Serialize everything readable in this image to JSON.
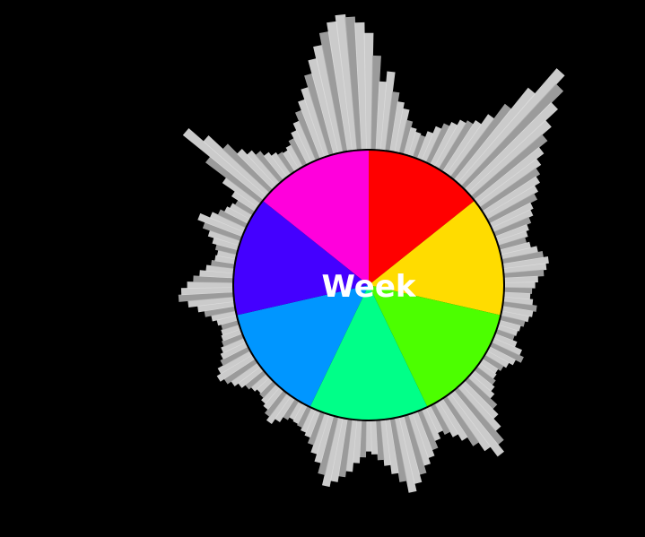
{
  "chart_data": {
    "type": "pie",
    "center_label": "Week",
    "title": "",
    "slices": [
      {
        "value": 1,
        "color": "#ff0000"
      },
      {
        "value": 1,
        "color": "#ffdc00"
      },
      {
        "value": 1,
        "color": "#4cff00"
      },
      {
        "value": 1,
        "color": "#00ff88"
      },
      {
        "value": 1,
        "color": "#0096ff"
      },
      {
        "value": 1,
        "color": "#4400ff"
      },
      {
        "value": 1,
        "color": "#ff00dc"
      }
    ],
    "radial_bars": {
      "color": "#dcdcdc",
      "shade_color": "#a8a8a8",
      "count": 180,
      "values": [
        0.77,
        0.62,
        0.45,
        0.52,
        0.39,
        0.33,
        0.29,
        0.22,
        0.18,
        0.16,
        0.15,
        0.19,
        0.24,
        0.28,
        0.31,
        0.35,
        0.37,
        0.4,
        0.48,
        0.6,
        0.78,
        1.0,
        0.92,
        0.81,
        0.7,
        0.62,
        0.55,
        0.49,
        0.45,
        0.42,
        0.38,
        0.35,
        0.3,
        0.28,
        0.25,
        0.22,
        0.2,
        0.18,
        0.2,
        0.24,
        0.27,
        0.3,
        0.28,
        0.26,
        0.22,
        0.2,
        0.18,
        0.17,
        0.19,
        0.22,
        0.2,
        0.18,
        0.16,
        0.14,
        0.13,
        0.12,
        0.15,
        0.2,
        0.23,
        0.19,
        0.16,
        0.14,
        0.12,
        0.13,
        0.15,
        0.17,
        0.2,
        0.26,
        0.31,
        0.38,
        0.46,
        0.52,
        0.44,
        0.37,
        0.3,
        0.25,
        0.21,
        0.18,
        0.22,
        0.27,
        0.31,
        0.35,
        0.4,
        0.45,
        0.5,
        0.42,
        0.36,
        0.3,
        0.26,
        0.22,
        0.2,
        0.24,
        0.28,
        0.34,
        0.38,
        0.42,
        0.46,
        0.39,
        0.32,
        0.27,
        0.22,
        0.18,
        0.16,
        0.14,
        0.13,
        0.12,
        0.14,
        0.18,
        0.22,
        0.19,
        0.16,
        0.14,
        0.12,
        0.11,
        0.13,
        0.15,
        0.18,
        0.21,
        0.24,
        0.27,
        0.24,
        0.2,
        0.18,
        0.16,
        0.14,
        0.13,
        0.12,
        0.11,
        0.13,
        0.16,
        0.2,
        0.24,
        0.3,
        0.36,
        0.34,
        0.3,
        0.26,
        0.22,
        0.18,
        0.15,
        0.13,
        0.12,
        0.14,
        0.17,
        0.21,
        0.26,
        0.31,
        0.24,
        0.2,
        0.17,
        0.15,
        0.13,
        0.18,
        0.28,
        0.45,
        0.68,
        0.55,
        0.42,
        0.33,
        0.28,
        0.24,
        0.2,
        0.17,
        0.15,
        0.14,
        0.16,
        0.19,
        0.23,
        0.28,
        0.34,
        0.4,
        0.47,
        0.55,
        0.64,
        0.72,
        0.8,
        0.86,
        0.9,
        0.88,
        0.84
      ]
    }
  }
}
